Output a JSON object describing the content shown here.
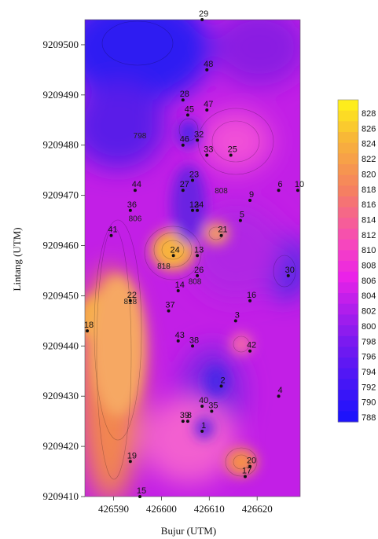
{
  "chart_data": {
    "type": "heatmap",
    "xlabel": "Bujur (UTM)",
    "ylabel": "Lintang (UTM)",
    "xlim": [
      426584,
      426629
    ],
    "ylim": [
      9209410,
      9209505
    ],
    "x_ticks": [
      {
        "value": 426590,
        "label": "426590"
      },
      {
        "value": 426600,
        "label": "426600"
      },
      {
        "value": 426610,
        "label": "426610"
      },
      {
        "value": 426620,
        "label": "426620"
      }
    ],
    "y_ticks": [
      {
        "value": 9209410,
        "label": "9209410"
      },
      {
        "value": 9209420,
        "label": "9209420"
      },
      {
        "value": 9209430,
        "label": "9209430"
      },
      {
        "value": 9209440,
        "label": "9209440"
      },
      {
        "value": 9209450,
        "label": "9209450"
      },
      {
        "value": 9209460,
        "label": "9209460"
      },
      {
        "value": 9209470,
        "label": "9209470"
      },
      {
        "value": 9209480,
        "label": "9209480"
      },
      {
        "value": 9209490,
        "label": "9209490"
      },
      {
        "value": 9209500,
        "label": "9209500"
      }
    ],
    "colorbar": {
      "min": 788,
      "max": 828,
      "step": 2,
      "labels": [
        "828",
        "826",
        "824",
        "822",
        "820",
        "818",
        "816",
        "814",
        "812",
        "810",
        "808",
        "806",
        "804",
        "802",
        "800",
        "798",
        "796",
        "794",
        "792",
        "790",
        "788"
      ]
    },
    "contour_labels": [
      {
        "text": "798",
        "x": 426595.5,
        "y": 9209482
      },
      {
        "text": "806",
        "x": 426594.5,
        "y": 9209465.5
      },
      {
        "text": "808",
        "x": 426612.5,
        "y": 9209471
      },
      {
        "text": "818",
        "x": 426600.5,
        "y": 9209456
      },
      {
        "text": "808",
        "x": 426607,
        "y": 9209453
      },
      {
        "text": "818",
        "x": 426593.5,
        "y": 9209449
      }
    ],
    "stations": [
      {
        "label": "29",
        "x": 426608.5,
        "y": 9209505
      },
      {
        "label": "48",
        "x": 426609.5,
        "y": 9209495
      },
      {
        "label": "28",
        "x": 426604.5,
        "y": 9209489
      },
      {
        "label": "45",
        "x": 426605.5,
        "y": 9209486
      },
      {
        "label": "47",
        "x": 426609.5,
        "y": 9209487
      },
      {
        "label": "32",
        "x": 426607.5,
        "y": 9209481
      },
      {
        "label": "46",
        "x": 426604.5,
        "y": 9209480
      },
      {
        "label": "33",
        "x": 426609.5,
        "y": 9209478
      },
      {
        "label": "25",
        "x": 426614.5,
        "y": 9209478
      },
      {
        "label": "23",
        "x": 426606.5,
        "y": 9209473
      },
      {
        "label": "44",
        "x": 426594.5,
        "y": 9209471
      },
      {
        "label": "27",
        "x": 426604.5,
        "y": 9209471
      },
      {
        "label": "6",
        "x": 426624.5,
        "y": 9209471
      },
      {
        "label": "10",
        "x": 426628.5,
        "y": 9209471
      },
      {
        "label": "9",
        "x": 426618.5,
        "y": 9209469
      },
      {
        "label": "36",
        "x": 426593.5,
        "y": 9209467
      },
      {
        "label": "12",
        "x": 426606.5,
        "y": 9209467
      },
      {
        "label": "34",
        "x": 426607.5,
        "y": 9209467
      },
      {
        "label": "5",
        "x": 426616.5,
        "y": 9209465
      },
      {
        "label": "41",
        "x": 426589.5,
        "y": 9209462
      },
      {
        "label": "21",
        "x": 426612.5,
        "y": 9209462
      },
      {
        "label": "24",
        "x": 426602.5,
        "y": 9209458
      },
      {
        "label": "13",
        "x": 426607.5,
        "y": 9209458
      },
      {
        "label": "26",
        "x": 426607.5,
        "y": 9209454
      },
      {
        "label": "30",
        "x": 426626.5,
        "y": 9209454
      },
      {
        "label": "14",
        "x": 426603.5,
        "y": 9209451
      },
      {
        "label": "22",
        "x": 426593.5,
        "y": 9209449
      },
      {
        "label": "16",
        "x": 426618.5,
        "y": 9209449
      },
      {
        "label": "37",
        "x": 426601.5,
        "y": 9209447
      },
      {
        "label": "3",
        "x": 426615.5,
        "y": 9209445
      },
      {
        "label": "18",
        "x": 426584.5,
        "y": 9209443
      },
      {
        "label": "43",
        "x": 426603.5,
        "y": 9209441
      },
      {
        "label": "38",
        "x": 426606.5,
        "y": 9209440
      },
      {
        "label": "42",
        "x": 426618.5,
        "y": 9209439
      },
      {
        "label": "2",
        "x": 426612.5,
        "y": 9209432
      },
      {
        "label": "4",
        "x": 426624.5,
        "y": 9209430
      },
      {
        "label": "40",
        "x": 426608.5,
        "y": 9209428
      },
      {
        "label": "35",
        "x": 426610.5,
        "y": 9209427
      },
      {
        "label": "39",
        "x": 426604.5,
        "y": 9209425
      },
      {
        "label": "8",
        "x": 426605.5,
        "y": 9209425
      },
      {
        "label": "1",
        "x": 426608.5,
        "y": 9209423
      },
      {
        "label": "19",
        "x": 426593.5,
        "y": 9209417
      },
      {
        "label": "20",
        "x": 426618.5,
        "y": 9209416
      },
      {
        "label": "17",
        "x": 426617.5,
        "y": 9209414
      },
      {
        "label": "15",
        "x": 426595.5,
        "y": 9209410
      }
    ],
    "grid": false,
    "legend": "colorbar-right"
  }
}
